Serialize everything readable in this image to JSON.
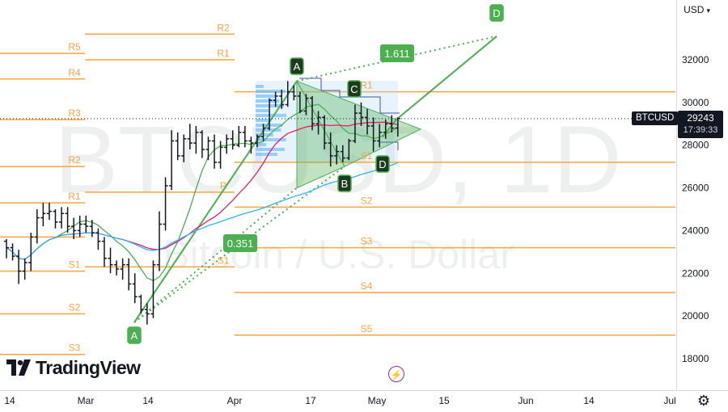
{
  "header": {
    "currency": "USD"
  },
  "watermark": {
    "symbol": "BTCUSD, 1D",
    "name": "Bitcoin / U.S. Dollar"
  },
  "symbol_tag": "BTCUSD",
  "last_price": "29243",
  "countdown": "17:39:33",
  "brand": {
    "name": "TradingView"
  },
  "colors": {
    "up": "#26a69a",
    "pivot": "#f7a541",
    "pattern": "#4caf50",
    "price_bg": "#131722",
    "event": "#9c27b0"
  },
  "icons": {
    "settings": "gear-icon",
    "event": "lightning-icon",
    "currency_caret": "chevron-down-icon"
  },
  "chart_data": {
    "type": "candlestick",
    "y_axis": {
      "ticks": [
        18000,
        20000,
        22000,
        24000,
        26000,
        28000,
        30000,
        32000
      ],
      "ylim": [
        16300,
        34200
      ]
    },
    "x_axis": {
      "tick_labels": [
        "14",
        "Mar",
        "14",
        "Apr",
        "17",
        "May",
        "15",
        "Jun",
        "14",
        "Jul"
      ]
    },
    "candles": [
      [
        23500,
        23600,
        22700,
        23200
      ],
      [
        23200,
        23400,
        22600,
        22800
      ],
      [
        22800,
        23100,
        21500,
        22100
      ],
      [
        22100,
        22700,
        21700,
        22500
      ],
      [
        22500,
        23900,
        22100,
        23700
      ],
      [
        23700,
        25000,
        23400,
        24600
      ],
      [
        24600,
        25300,
        24200,
        24800
      ],
      [
        24800,
        25300,
        24500,
        24900
      ],
      [
        24900,
        25000,
        24100,
        24400
      ],
      [
        24400,
        25100,
        24100,
        24800
      ],
      [
        24800,
        25100,
        23900,
        24200
      ],
      [
        24200,
        24600,
        23600,
        24000
      ],
      [
        24000,
        24700,
        23700,
        24300
      ],
      [
        24300,
        24700,
        23900,
        24200
      ],
      [
        24200,
        24500,
        23700,
        23900
      ],
      [
        23900,
        24100,
        23100,
        23500
      ],
      [
        23500,
        23700,
        22300,
        22700
      ],
      [
        22700,
        23200,
        22000,
        22400
      ],
      [
        22400,
        22600,
        21900,
        22200
      ],
      [
        22200,
        22700,
        21700,
        22400
      ],
      [
        22400,
        22700,
        21200,
        21500
      ],
      [
        21500,
        22000,
        20600,
        20900
      ],
      [
        20900,
        21000,
        20100,
        20300
      ],
      [
        20300,
        20600,
        19600,
        20100
      ],
      [
        20100,
        22600,
        19900,
        22400
      ],
      [
        22400,
        24900,
        22100,
        24300
      ],
      [
        24300,
        26500,
        24000,
        26100
      ],
      [
        26100,
        28700,
        25900,
        28200
      ],
      [
        28200,
        28600,
        27300,
        27500
      ],
      [
        27500,
        28500,
        27200,
        28300
      ],
      [
        28300,
        29000,
        27800,
        28100
      ],
      [
        28100,
        28900,
        27600,
        28600
      ],
      [
        28600,
        28700,
        27400,
        27800
      ],
      [
        27800,
        28400,
        27300,
        28200
      ],
      [
        28200,
        28500,
        26900,
        27200
      ],
      [
        27200,
        28200,
        26900,
        27900
      ],
      [
        27900,
        28500,
        27600,
        28300
      ],
      [
        28300,
        28700,
        27800,
        28000
      ],
      [
        28000,
        28900,
        27900,
        28600
      ],
      [
        28600,
        28900,
        27900,
        28200
      ],
      [
        28200,
        28400,
        27600,
        28100
      ],
      [
        28100,
        28500,
        27900,
        28400
      ],
      [
        28400,
        29000,
        28200,
        28800
      ],
      [
        28800,
        30200,
        28700,
        30100
      ],
      [
        30100,
        30500,
        29800,
        30300
      ],
      [
        30300,
        30600,
        29700,
        29900
      ],
      [
        29900,
        31000,
        29800,
        30500
      ],
      [
        30500,
        30800,
        30100,
        30300
      ],
      [
        30300,
        30500,
        29500,
        29600
      ],
      [
        29600,
        30400,
        29400,
        30200
      ],
      [
        30200,
        30300,
        28700,
        29000
      ],
      [
        29000,
        29600,
        28500,
        29300
      ],
      [
        29300,
        29400,
        27800,
        28100
      ],
      [
        28100,
        28600,
        27000,
        27500
      ],
      [
        27500,
        28000,
        27100,
        27700
      ],
      [
        27700,
        28000,
        27200,
        27400
      ],
      [
        27400,
        28300,
        27300,
        28200
      ],
      [
        28200,
        29900,
        28100,
        29500
      ],
      [
        29500,
        30000,
        28900,
        29300
      ],
      [
        29300,
        29700,
        28500,
        28900
      ],
      [
        28900,
        29300,
        27700,
        28200
      ],
      [
        28200,
        29000,
        27900,
        28600
      ],
      [
        28600,
        29200,
        28300,
        29000
      ],
      [
        29000,
        29400,
        28600,
        28800
      ],
      [
        28800,
        29300,
        28400,
        29243
      ]
    ],
    "pivots": [
      {
        "label": "R5",
        "value": 32300
      },
      {
        "label": "R4",
        "value": 31100
      },
      {
        "label": "R3",
        "value": 29200
      },
      {
        "label": "R2",
        "value": 27000
      },
      {
        "label": "R1",
        "value": 25300
      },
      {
        "label": "P",
        "value": 23700
      },
      {
        "label": "S1",
        "value": 22100
      },
      {
        "label": "S2",
        "value": 20100
      },
      {
        "label": "S3",
        "value": 18200
      },
      {
        "label": "R2",
        "value": 33200
      },
      {
        "label": "R1",
        "value": 32000
      },
      {
        "label": "P",
        "value": 25800
      },
      {
        "label": "S1",
        "value": 22300
      },
      {
        "label": "R1",
        "value": 30500
      },
      {
        "label": "S1",
        "value": 27200
      },
      {
        "label": "S2",
        "value": 25100
      },
      {
        "label": "S3",
        "value": 23200
      },
      {
        "label": "S4",
        "value": 21100
      },
      {
        "label": "S5",
        "value": 19100
      }
    ],
    "pattern_points": [
      {
        "label": "A",
        "value": 19700
      },
      {
        "label": "A",
        "value": 31000
      },
      {
        "label": "B",
        "value": 27000
      },
      {
        "label": "C",
        "value": 30200
      },
      {
        "label": "D",
        "value": 27700
      },
      {
        "label": "D",
        "value": 33100
      }
    ],
    "fib_labels": [
      "1.611",
      "0.351"
    ]
  }
}
